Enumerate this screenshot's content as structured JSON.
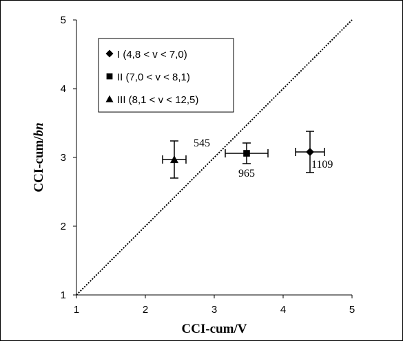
{
  "chart_data": {
    "type": "scatter",
    "xlabel": "CCI-cum/V",
    "ylabel": {
      "prefix": "CCI-cum/",
      "suffix": "bn"
    },
    "xlim": [
      1,
      5
    ],
    "ylim": [
      1,
      5
    ],
    "xticks": [
      "1",
      "2",
      "3",
      "4",
      "5"
    ],
    "yticks": [
      "1",
      "2",
      "3",
      "4",
      "5"
    ],
    "grid": false,
    "legend_position": "top-left",
    "reference_line": {
      "type": "identity",
      "style": "dotted",
      "from": [
        1,
        1
      ],
      "to": [
        5,
        5
      ]
    },
    "series": [
      {
        "name": "I (4,8 < v < 7,0)",
        "marker": "diamond",
        "x": 4.39,
        "y": 3.08,
        "x_err": 0.21,
        "y_err": 0.3,
        "label": "1109"
      },
      {
        "name": "II (7,0 < v < 8,1)",
        "marker": "square",
        "x": 3.47,
        "y": 3.06,
        "x_err": 0.31,
        "y_err": 0.15,
        "label": "965"
      },
      {
        "name": "III (8,1 < v < 12,5)",
        "marker": "triangle",
        "x": 2.42,
        "y": 2.97,
        "x_err": 0.17,
        "y_err": 0.27,
        "label": "545"
      }
    ]
  }
}
